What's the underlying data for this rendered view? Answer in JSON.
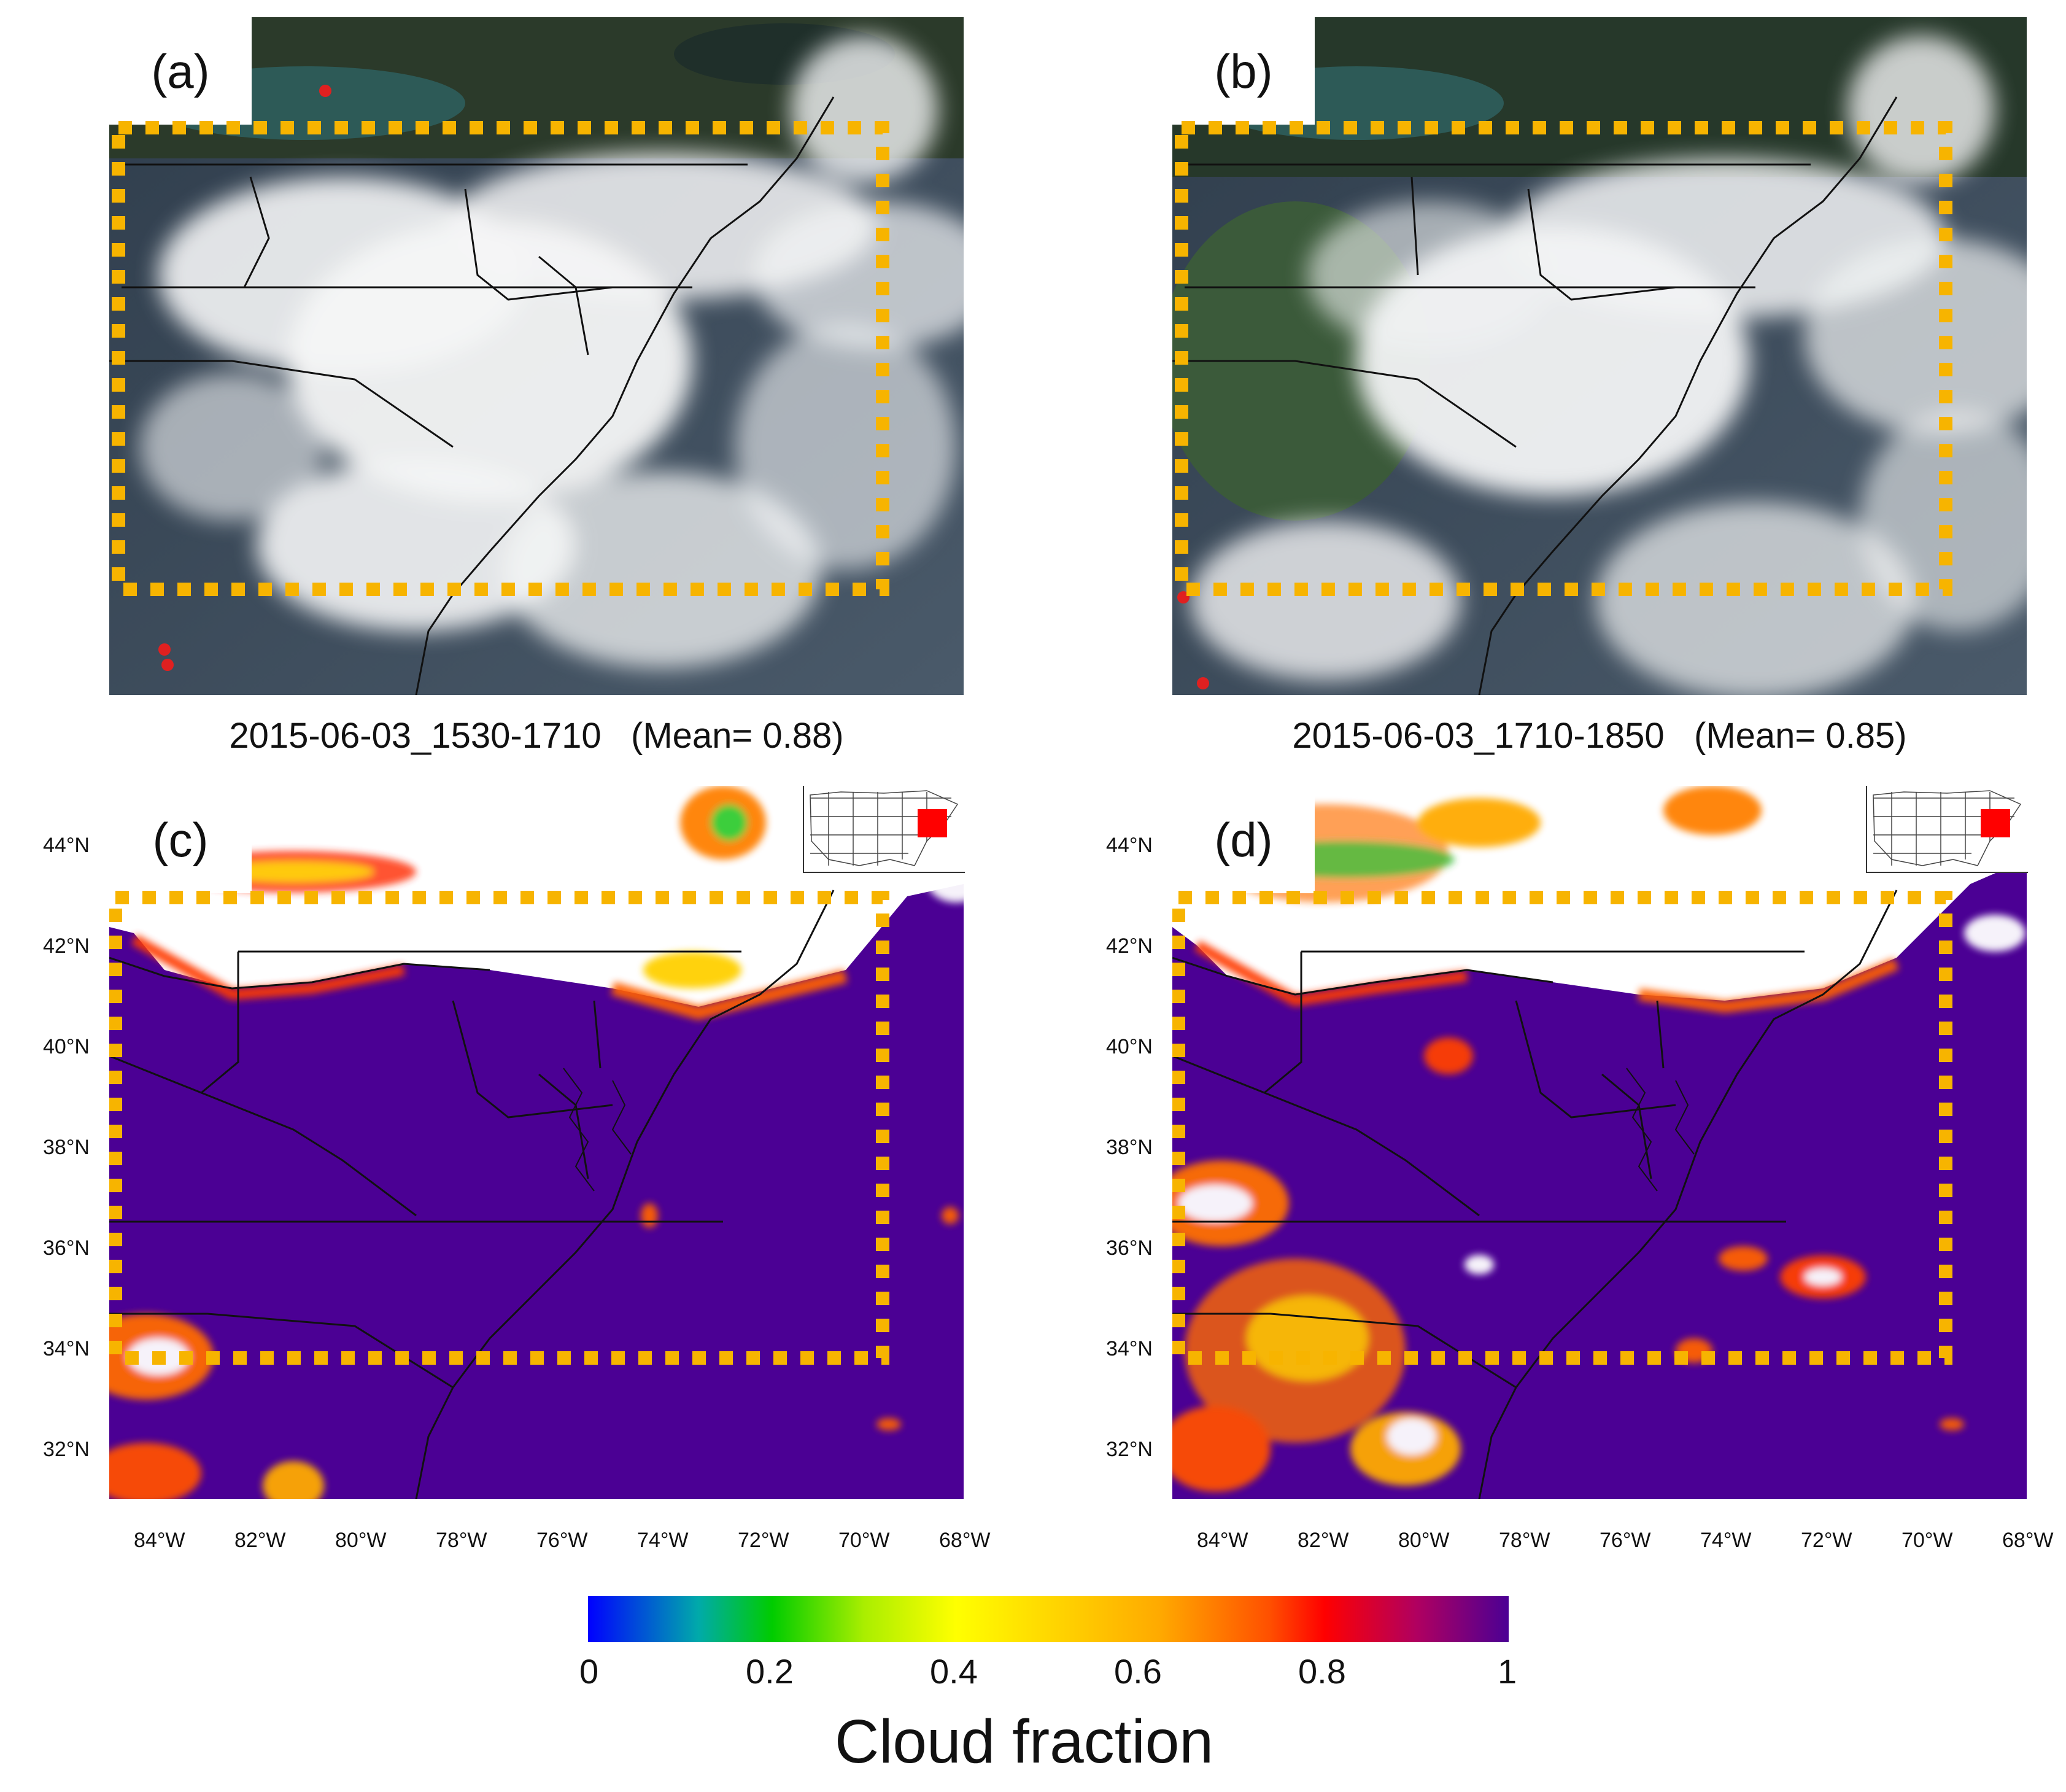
{
  "figure": {
    "panels": [
      {
        "label": "(a)",
        "kind": "true-color satellite image",
        "subtitle_time": "2015-06-03_1530-1710",
        "subtitle_mean": "(Mean= 0.88)"
      },
      {
        "label": "(b)",
        "kind": "true-color satellite image",
        "subtitle_time": "2015-06-03_1710-1850",
        "subtitle_mean": "(Mean= 0.85)"
      },
      {
        "label": "(c)",
        "kind": "cloud fraction map"
      },
      {
        "label": "(d)",
        "kind": "cloud fraction map"
      }
    ],
    "lat_ticks": [
      "44°N",
      "42°N",
      "40°N",
      "38°N",
      "36°N",
      "34°N",
      "32°N"
    ],
    "lon_ticks": [
      "84°W",
      "82°W",
      "80°W",
      "78°W",
      "76°W",
      "74°W",
      "72°W",
      "70°W",
      "68°W"
    ],
    "colorbar": {
      "ticks": [
        "0",
        "0.2",
        "0.4",
        "0.6",
        "0.8",
        "1"
      ],
      "title": "Cloud fraction",
      "colors": [
        "#0000ff",
        "#00cc00",
        "#ffff00",
        "#ffaa00",
        "#ff0000",
        "#4b0094"
      ]
    },
    "colors": {
      "analysis_box": "#f7b400",
      "cloud_fraction_high": "#4b0094",
      "clear_sky": "#ffffff",
      "fire_marker": "#e02020",
      "inset_highlight": "#ff0000"
    },
    "map_extent": {
      "lon": [
        -85,
        -68
      ],
      "lat": [
        31,
        45
      ]
    },
    "analysis_region": {
      "lon": [
        -85,
        -69.8
      ],
      "lat": [
        34,
        43
      ]
    }
  }
}
